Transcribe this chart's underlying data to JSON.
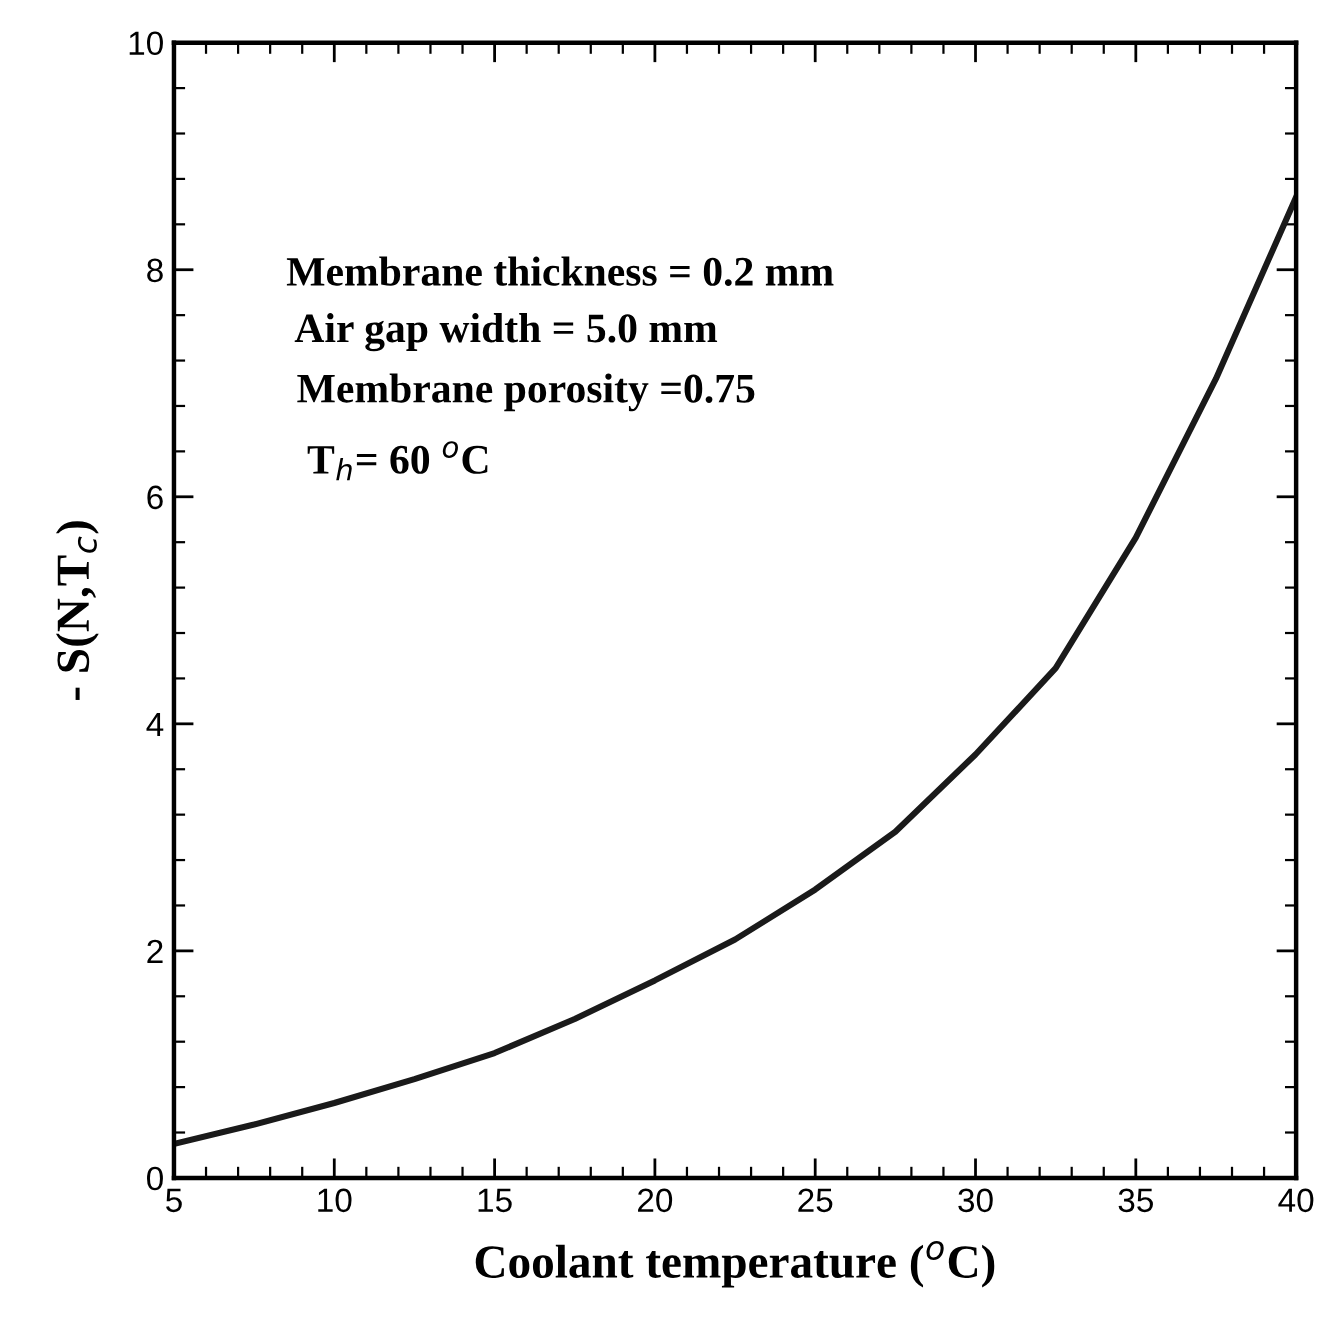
{
  "chart_data": {
    "type": "line",
    "xlabel": "Coolant temperature ($^{o}$C)",
    "ylabel": "- S(N,T$_{c}$)",
    "annotations": [
      "Membrane thickness = 0.2 mm",
      " Air gap width = 5.0 mm",
      " Membrane porosity =0.75",
      "  T$_{h}$= 60 $^{o}$C"
    ],
    "series": [
      {
        "color": "#1a1a1a",
        "x": [
          5,
          7.5,
          10,
          12.5,
          15,
          17.5,
          20,
          22.5,
          25,
          27.5,
          30,
          32.5,
          35,
          37.5,
          40
        ],
        "values": [
          0.3,
          0.47,
          0.66,
          0.87,
          1.1,
          1.4,
          1.74,
          2.1,
          2.54,
          3.05,
          3.73,
          4.49,
          5.64,
          7.04,
          8.64
        ]
      }
    ],
    "xlim": [
      5,
      40
    ],
    "xticks": [
      5,
      10,
      15,
      20,
      25,
      30,
      35,
      40
    ],
    "ylim": [
      0,
      10
    ],
    "yticks": [
      0,
      2,
      4,
      6,
      8,
      10
    ],
    "grid": false,
    "legend": false,
    "marker": "none",
    "line_style": "solid"
  }
}
